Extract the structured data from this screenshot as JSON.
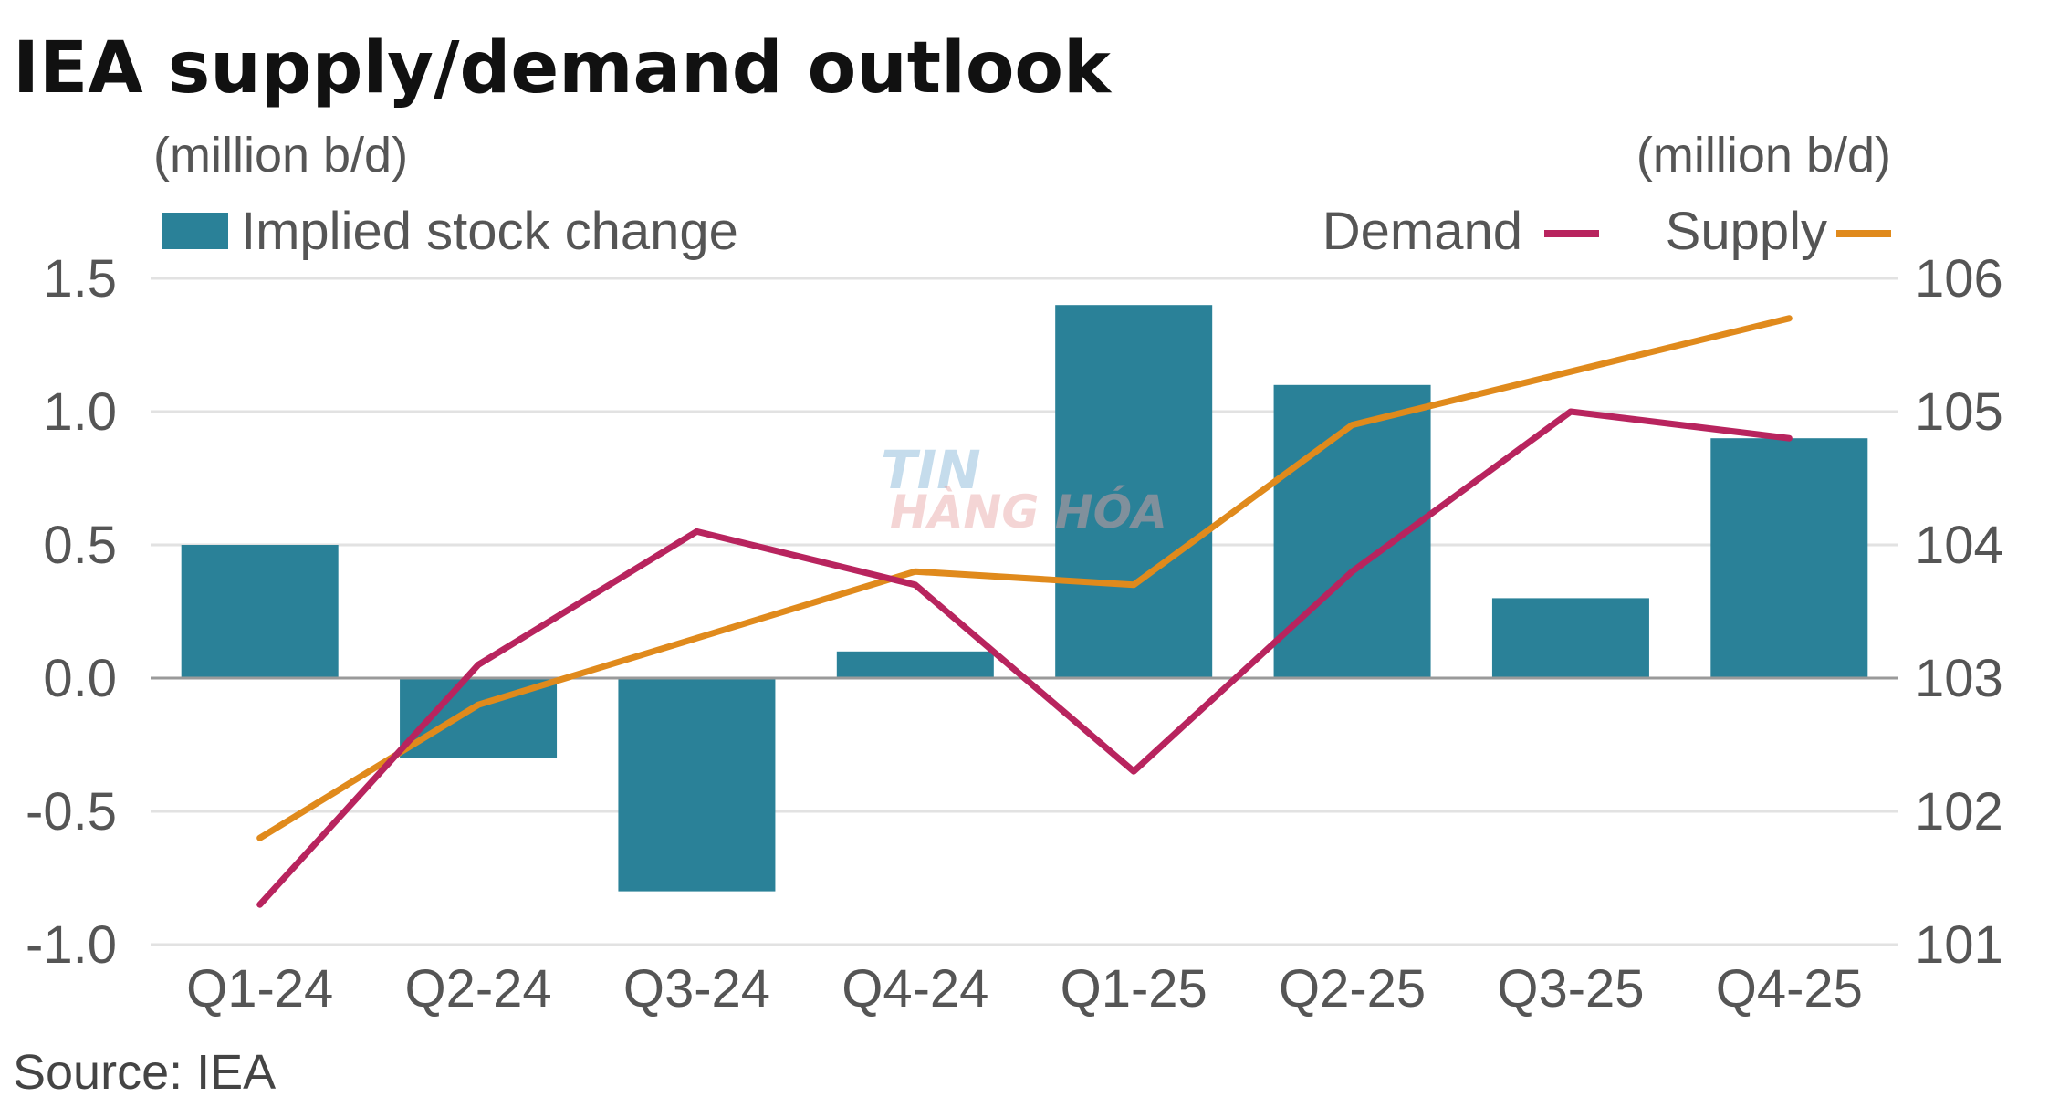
{
  "chart_data": {
    "type": "bar+line",
    "title": "IEA supply/demand outlook",
    "left_unit_label": "(million b/d)",
    "right_unit_label": "(million b/d)",
    "categories": [
      "Q1-24",
      "Q2-24",
      "Q3-24",
      "Q4-24",
      "Q1-25",
      "Q2-25",
      "Q3-25",
      "Q4-25"
    ],
    "bar_series": {
      "name": "Implied stock change",
      "axis": "left",
      "color": "#2a8198",
      "values": [
        0.5,
        -0.3,
        -0.8,
        0.1,
        1.4,
        1.1,
        0.3,
        0.9
      ]
    },
    "line_series": [
      {
        "name": "Demand",
        "axis": "right",
        "color": "#b8245e",
        "values": [
          101.3,
          103.1,
          104.1,
          103.7,
          102.3,
          103.8,
          105.0,
          104.8
        ]
      },
      {
        "name": "Supply",
        "axis": "right",
        "color": "#e08a1c",
        "values": [
          101.8,
          102.8,
          103.3,
          103.8,
          103.7,
          104.9,
          105.3,
          105.7
        ]
      }
    ],
    "left_axis": {
      "min": -1.0,
      "max": 1.5,
      "ticks": [
        "-1.0",
        "-0.5",
        "0.0",
        "0.5",
        "1.0",
        "1.5"
      ],
      "tick_values": [
        -1.0,
        -0.5,
        0.0,
        0.5,
        1.0,
        1.5
      ]
    },
    "right_axis": {
      "min": 101,
      "max": 106,
      "ticks": [
        "101",
        "102",
        "103",
        "104",
        "105",
        "106"
      ],
      "tick_values": [
        101,
        102,
        103,
        104,
        105,
        106
      ]
    },
    "legend_placement": "top",
    "grid": true
  },
  "source_text": "Source: IEA",
  "watermark": {
    "line1": "TIN",
    "line2": "HÀNG HÓA"
  }
}
